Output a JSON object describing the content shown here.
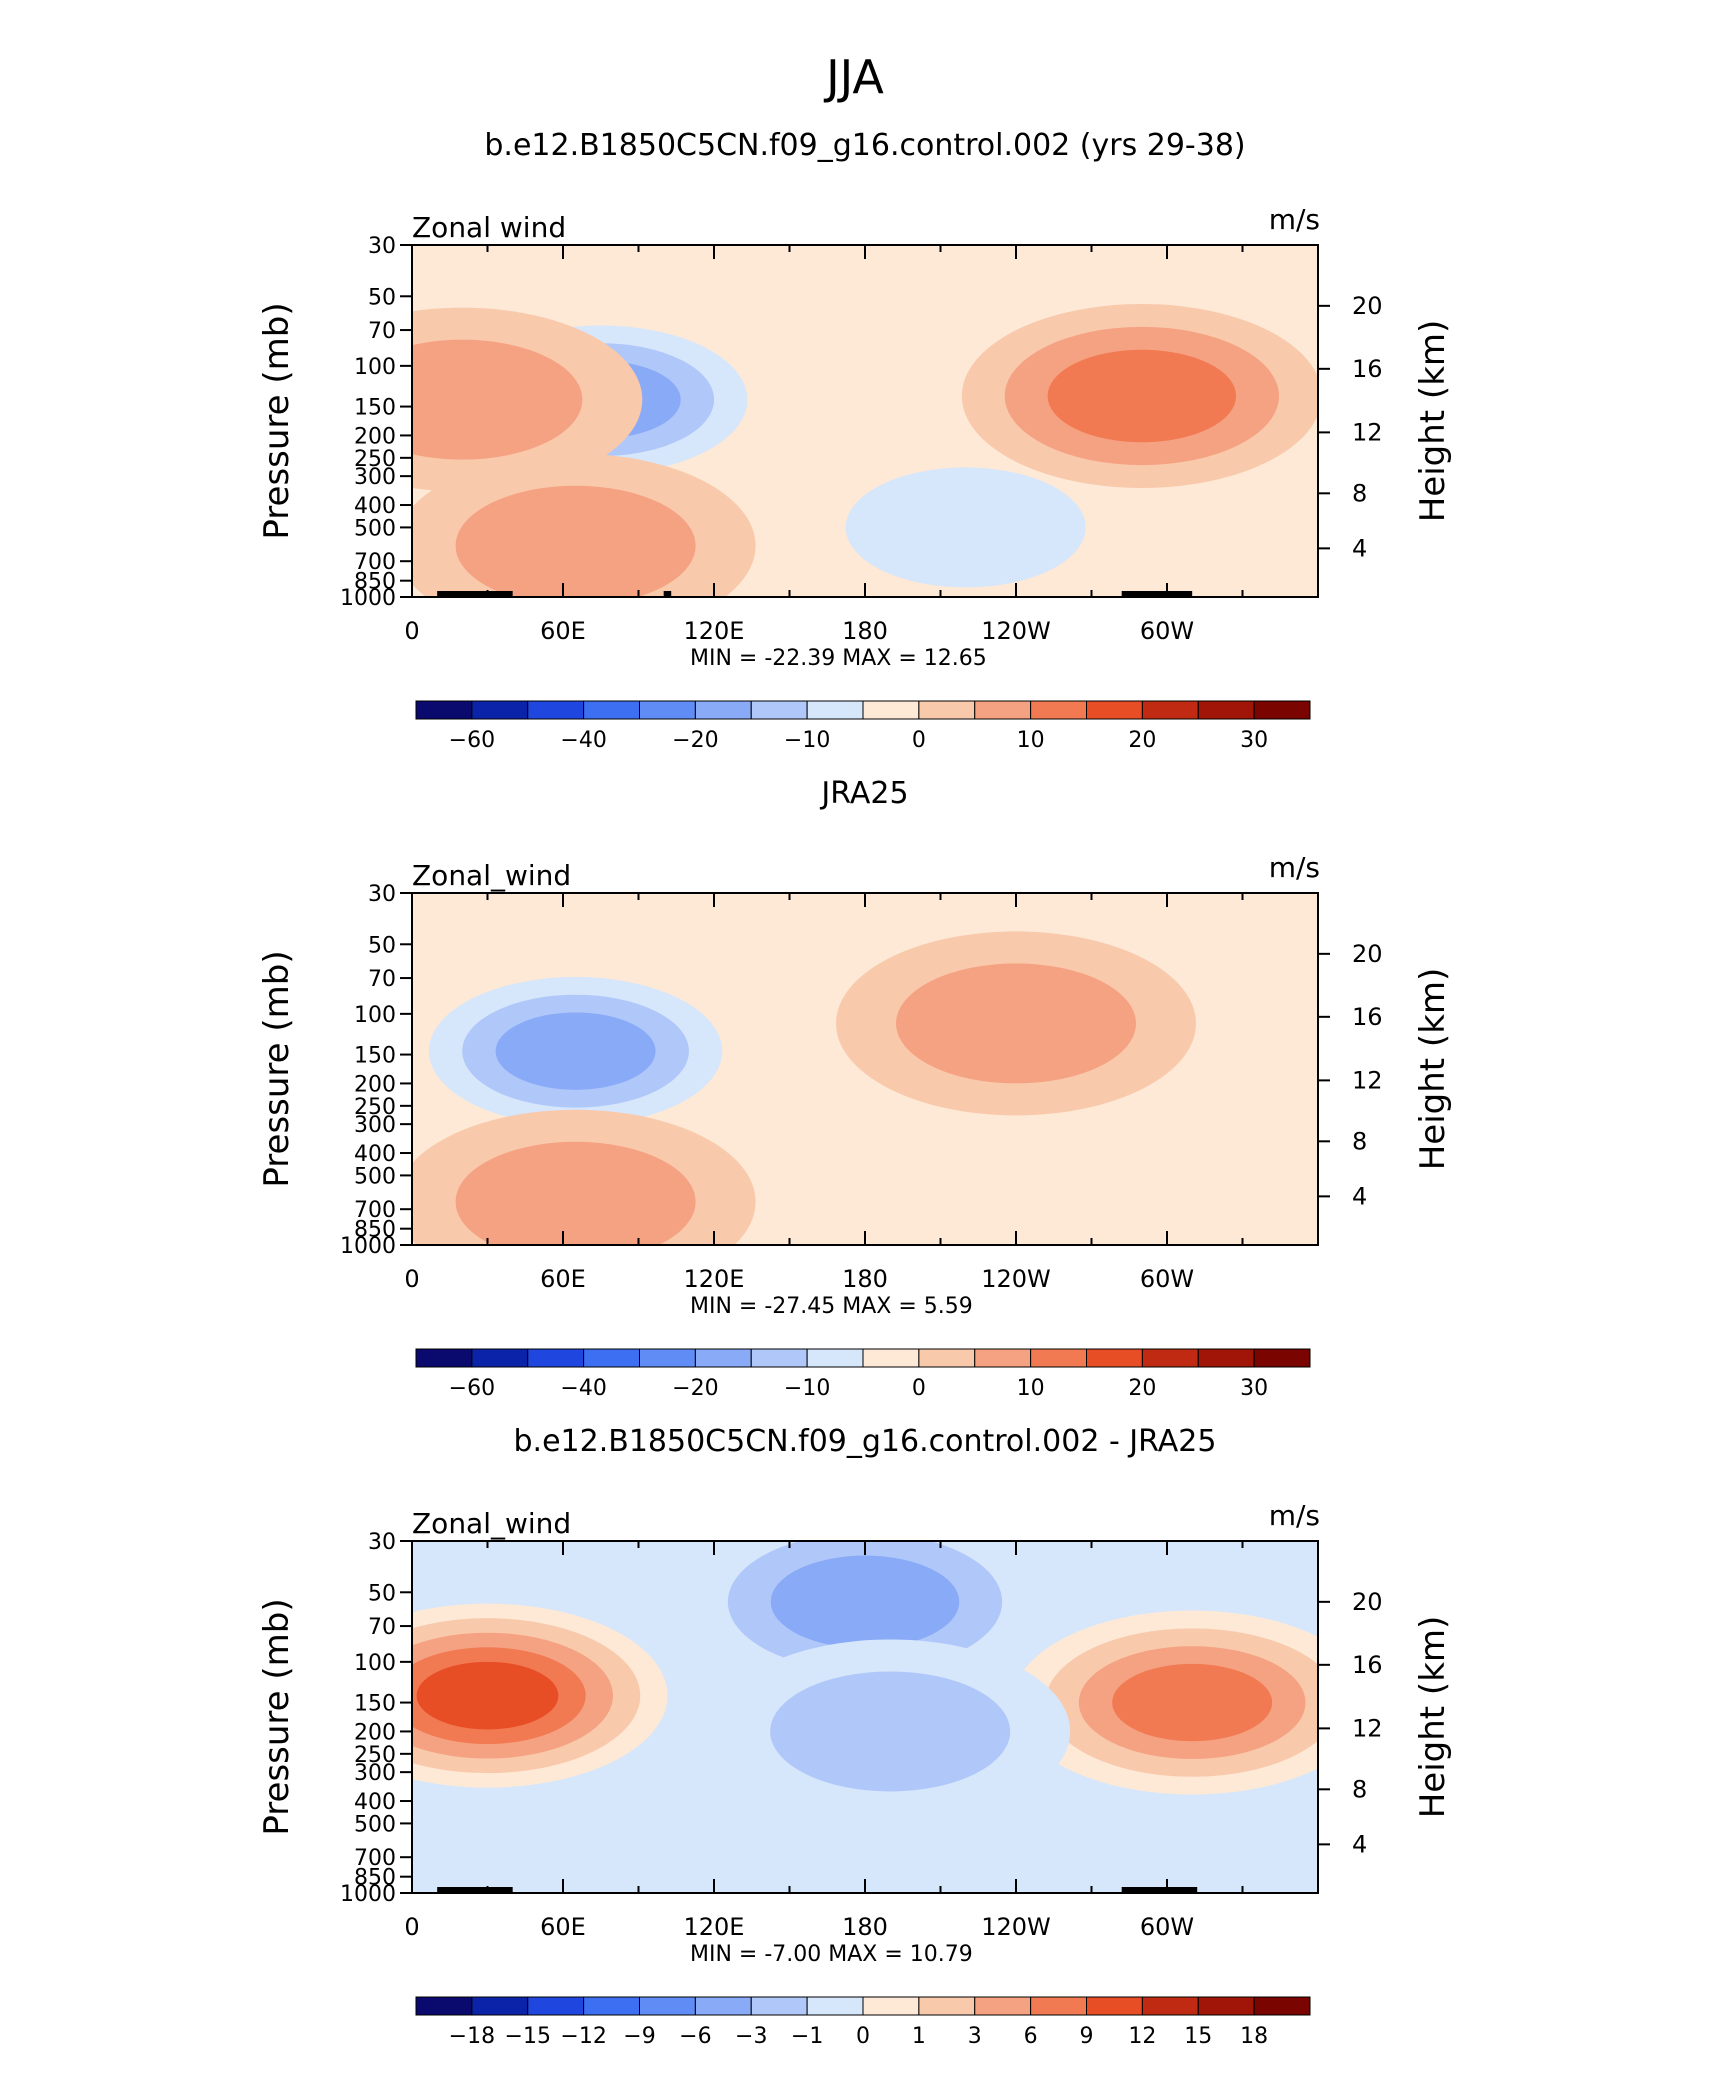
{
  "title": "JJA",
  "chart_data": [
    {
      "type": "heatmap",
      "title": "b.e12.B1850C5CN.f09_g16.control.002 (yrs 29-38)",
      "variable_label": "Zonal wind",
      "units_label": "m/s",
      "ylabel": "Pressure (mb)",
      "y2label": "Height (km)",
      "x_ticks": [
        "0",
        "60E",
        "120E",
        "180",
        "120W",
        "60W"
      ],
      "x_tick_values": [
        0,
        60,
        120,
        180,
        240,
        300
      ],
      "xlim": [
        0,
        360
      ],
      "y_ticks": [
        "30",
        "50",
        "70",
        "100",
        "150",
        "200",
        "250",
        "300",
        "400",
        "500",
        "700",
        "850",
        "1000"
      ],
      "y_tick_values": [
        30,
        50,
        70,
        100,
        150,
        200,
        250,
        300,
        400,
        500,
        700,
        850,
        1000
      ],
      "ylim": [
        1000,
        30
      ],
      "y2_ticks": [
        "4",
        "8",
        "12",
        "16",
        "20"
      ],
      "stats": {
        "min_label": "MIN =",
        "min": "-22.39",
        "max_label": "MAX =",
        "max": "12.65"
      },
      "colorbar_labels": [
        "-60",
        "-40",
        "-20",
        "-10",
        "0",
        "10",
        "20",
        "30"
      ],
      "colorbar_levels": [
        -70,
        -60,
        -50,
        -40,
        -30,
        -20,
        -15,
        -10,
        -5,
        0,
        5,
        10,
        15,
        20,
        25,
        30,
        35
      ],
      "colors": [
        "#0a0a6e",
        "#0b23a8",
        "#1f47e0",
        "#3d6ff2",
        "#5f8cf5",
        "#88aaf7",
        "#b0c8f9",
        "#d6e6fb",
        "#fde9d6",
        "#f9c9ac",
        "#f5a282",
        "#f17a52",
        "#e84e25",
        "#c02a12",
        "#a01508",
        "#7a0500"
      ],
      "blobs": [
        {
          "lon": 75,
          "p": 140,
          "level": -20,
          "value": -22.39
        },
        {
          "lon": 220,
          "p": 500,
          "level": -10,
          "value": -3
        },
        {
          "lon": 290,
          "p": 135,
          "level": 10,
          "value": 12.65
        },
        {
          "lon": 65,
          "p": 600,
          "level": 5,
          "value": 7
        },
        {
          "lon": 20,
          "p": 140,
          "level": 5,
          "value": 5
        }
      ],
      "topography": [
        {
          "lon_start": 10,
          "lon_end": 40
        },
        {
          "lon_start": 282,
          "lon_end": 310
        },
        {
          "lon_start": 100,
          "lon_end": 103
        }
      ]
    },
    {
      "type": "heatmap",
      "title": "JRA25",
      "variable_label": "Zonal_wind",
      "units_label": "m/s",
      "ylabel": "Pressure (mb)",
      "y2label": "Height (km)",
      "x_ticks": [
        "0",
        "60E",
        "120E",
        "180",
        "120W",
        "60W"
      ],
      "x_tick_values": [
        0,
        60,
        120,
        180,
        240,
        300
      ],
      "xlim": [
        0,
        360
      ],
      "y_ticks": [
        "30",
        "50",
        "70",
        "100",
        "150",
        "200",
        "250",
        "300",
        "400",
        "500",
        "700",
        "850",
        "1000"
      ],
      "y_tick_values": [
        30,
        50,
        70,
        100,
        150,
        200,
        250,
        300,
        400,
        500,
        700,
        850,
        1000
      ],
      "ylim": [
        1000,
        30
      ],
      "y2_ticks": [
        "4",
        "8",
        "12",
        "16",
        "20"
      ],
      "stats": {
        "min_label": "MIN =",
        "min": "-27.45",
        "max_label": "MAX =",
        "max": "5.59"
      },
      "colorbar_labels": [
        "-60",
        "-40",
        "-20",
        "-10",
        "0",
        "10",
        "20",
        "30"
      ],
      "colorbar_levels": [
        -70,
        -60,
        -50,
        -40,
        -30,
        -20,
        -15,
        -10,
        -5,
        0,
        5,
        10,
        15,
        20,
        25,
        30,
        35
      ],
      "colors": [
        "#0a0a6e",
        "#0b23a8",
        "#1f47e0",
        "#3d6ff2",
        "#5f8cf5",
        "#88aaf7",
        "#b0c8f9",
        "#d6e6fb",
        "#fde9d6",
        "#f9c9ac",
        "#f5a282",
        "#f17a52",
        "#e84e25",
        "#c02a12",
        "#a01508",
        "#7a0500"
      ],
      "blobs": [
        {
          "lon": 65,
          "p": 145,
          "level": -20,
          "value": -27.45
        },
        {
          "lon": 240,
          "p": 110,
          "level": 5,
          "value": 5.59
        },
        {
          "lon": 65,
          "p": 650,
          "level": 5,
          "value": 5
        }
      ],
      "topography": []
    },
    {
      "type": "heatmap",
      "title": "b.e12.B1850C5CN.f09_g16.control.002 - JRA25",
      "variable_label": "Zonal_wind",
      "units_label": "m/s",
      "ylabel": "Pressure (mb)",
      "y2label": "Height (km)",
      "x_ticks": [
        "0",
        "60E",
        "120E",
        "180",
        "120W",
        "60W"
      ],
      "x_tick_values": [
        0,
        60,
        120,
        180,
        240,
        300
      ],
      "xlim": [
        0,
        360
      ],
      "y_ticks": [
        "30",
        "50",
        "70",
        "100",
        "150",
        "200",
        "250",
        "300",
        "400",
        "500",
        "700",
        "850",
        "1000"
      ],
      "y_tick_values": [
        30,
        50,
        70,
        100,
        150,
        200,
        250,
        300,
        400,
        500,
        700,
        850,
        1000
      ],
      "ylim": [
        1000,
        30
      ],
      "y2_ticks": [
        "4",
        "8",
        "12",
        "16",
        "20"
      ],
      "stats": {
        "min_label": "MIN =",
        "min": "-7.00",
        "max_label": "MAX =",
        "max": "10.79"
      },
      "colorbar_labels": [
        "-18",
        "-15",
        "-12",
        "-9",
        "-6",
        "-3",
        "-1",
        "0",
        "1",
        "3",
        "6",
        "9",
        "12",
        "15",
        "18"
      ],
      "colorbar_levels": [
        -21,
        -18,
        -15,
        -12,
        -9,
        -6,
        -3,
        -1,
        0,
        1,
        3,
        6,
        9,
        12,
        15,
        18,
        21
      ],
      "colors": [
        "#0a0a6e",
        "#0b23a8",
        "#1f47e0",
        "#3d6ff2",
        "#5f8cf5",
        "#88aaf7",
        "#b0c8f9",
        "#d6e6fb",
        "#fde9d6",
        "#f9c9ac",
        "#f5a282",
        "#f17a52",
        "#e84e25",
        "#c02a12",
        "#a01508",
        "#7a0500"
      ],
      "blobs": [
        {
          "lon": 180,
          "p": 55,
          "level": -6,
          "value": -7.0
        },
        {
          "lon": 30,
          "p": 140,
          "level": 9,
          "value": 10.79
        },
        {
          "lon": 310,
          "p": 150,
          "level": 6,
          "value": 8
        },
        {
          "lon": 190,
          "p": 200,
          "level": -3,
          "value": -4
        }
      ],
      "topography": [
        {
          "lon_start": 10,
          "lon_end": 40
        },
        {
          "lon_start": 282,
          "lon_end": 312
        }
      ]
    }
  ]
}
